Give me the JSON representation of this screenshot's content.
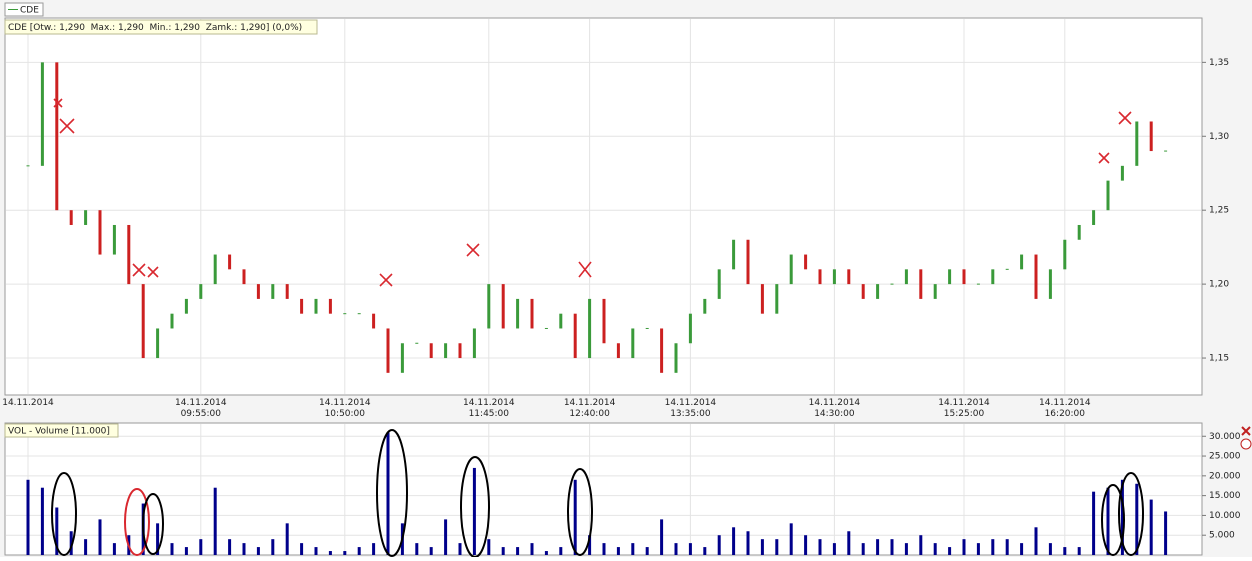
{
  "chart_data": [
    {
      "type": "candlestick",
      "legend": "CDE",
      "title": "CDE [Otw.: 1,290  Max.: 1,290  Min.: 1,290  Zamk.: 1,290] (0,0%)",
      "categories": [
        "14.11.2014",
        null,
        null,
        null,
        null,
        null,
        null,
        null,
        null,
        null,
        null,
        null,
        "14.11.2014\n09:55:00",
        null,
        null,
        null,
        null,
        null,
        null,
        null,
        null,
        null,
        "14.11.2014\n10:50:00",
        null,
        null,
        null,
        null,
        null,
        null,
        null,
        null,
        null,
        "14.11.2014\n11:45:00",
        null,
        null,
        null,
        null,
        null,
        null,
        "14.11.2014\n12:40:00",
        null,
        null,
        null,
        null,
        null,
        null,
        "14.11.2014\n13:35:00",
        null,
        null,
        null,
        null,
        null,
        null,
        null,
        null,
        null,
        "14.11.2014\n14:30:00",
        null,
        null,
        null,
        null,
        null,
        null,
        null,
        null,
        "14.11.2014\n15:25:00",
        null,
        null,
        null,
        null,
        null,
        null,
        "14.11.2014\n16:20:00",
        null,
        null,
        null,
        null,
        null,
        null,
        null
      ],
      "open": [
        1.28,
        1.28,
        1.35,
        1.25,
        1.24,
        1.25,
        1.22,
        1.24,
        1.2,
        1.15,
        1.17,
        1.18,
        1.19,
        1.2,
        1.22,
        1.21,
        1.2,
        1.19,
        1.2,
        1.19,
        1.18,
        1.19,
        1.18,
        1.18,
        1.18,
        1.17,
        1.14,
        1.16,
        1.16,
        1.15,
        1.16,
        1.15,
        1.17,
        1.2,
        1.17,
        1.19,
        1.17,
        1.17,
        1.18,
        1.15,
        1.19,
        1.16,
        1.15,
        1.17,
        1.17,
        1.14,
        1.16,
        1.18,
        1.19,
        1.21,
        1.23,
        1.2,
        1.18,
        1.2,
        1.22,
        1.21,
        1.2,
        1.21,
        1.2,
        1.19,
        1.2,
        1.2,
        1.21,
        1.19,
        1.2,
        1.21,
        1.2,
        1.2,
        1.21,
        1.21,
        1.22,
        1.19,
        1.21,
        1.23,
        1.24,
        1.25,
        1.27,
        1.28,
        1.31,
        1.29
      ],
      "close": [
        1.28,
        1.35,
        1.25,
        1.24,
        1.25,
        1.22,
        1.24,
        1.2,
        1.15,
        1.17,
        1.18,
        1.19,
        1.2,
        1.22,
        1.21,
        1.2,
        1.19,
        1.2,
        1.19,
        1.18,
        1.19,
        1.18,
        1.18,
        1.18,
        1.17,
        1.14,
        1.16,
        1.16,
        1.15,
        1.16,
        1.15,
        1.17,
        1.2,
        1.17,
        1.19,
        1.17,
        1.17,
        1.18,
        1.15,
        1.19,
        1.16,
        1.15,
        1.17,
        1.17,
        1.14,
        1.16,
        1.18,
        1.19,
        1.21,
        1.23,
        1.2,
        1.18,
        1.2,
        1.22,
        1.21,
        1.2,
        1.21,
        1.2,
        1.19,
        1.2,
        1.2,
        1.21,
        1.19,
        1.2,
        1.21,
        1.2,
        1.2,
        1.21,
        1.21,
        1.22,
        1.19,
        1.21,
        1.23,
        1.24,
        1.25,
        1.27,
        1.28,
        1.31,
        1.29,
        1.29
      ],
      "up_color": "#3a9a3a",
      "down_color": "#cc2020",
      "ylim": [
        1.125,
        1.38
      ],
      "yticks": [
        {
          "value": 1.15,
          "label": "1,15"
        },
        {
          "value": 1.2,
          "label": "1,20"
        },
        {
          "value": 1.25,
          "label": "1,25"
        },
        {
          "value": 1.3,
          "label": "1,30"
        },
        {
          "value": 1.35,
          "label": "1,35"
        }
      ],
      "grid": true
    },
    {
      "type": "bar",
      "title": "VOL - Volume [11.000]",
      "values": [
        19000,
        17000,
        12000,
        6000,
        4000,
        9000,
        3000,
        5000,
        13000,
        8000,
        3000,
        2000,
        4000,
        17000,
        4000,
        3000,
        2000,
        4000,
        8000,
        3000,
        2000,
        1000,
        1000,
        2000,
        3000,
        31000,
        8000,
        3000,
        2000,
        9000,
        3000,
        22000,
        4000,
        2000,
        2000,
        3000,
        1000,
        2000,
        19000,
        5000,
        3000,
        2000,
        3000,
        2000,
        9000,
        3000,
        3000,
        2000,
        5000,
        7000,
        6000,
        4000,
        4000,
        8000,
        5000,
        4000,
        3000,
        6000,
        3000,
        4000,
        4000,
        3000,
        5000,
        3000,
        2000,
        4000,
        3000,
        4000,
        4000,
        3000,
        7000,
        3000,
        2000,
        2000,
        16000,
        17000,
        19000,
        18000,
        14000,
        11000
      ],
      "color": "#00008b",
      "ylim": [
        0,
        33350
      ],
      "yticks": [
        {
          "value": 5000,
          "label": "5.000"
        },
        {
          "value": 10000,
          "label": "10.000"
        },
        {
          "value": 15000,
          "label": "15.000"
        },
        {
          "value": 20000,
          "label": "20.000"
        },
        {
          "value": 25000,
          "label": "25.000"
        },
        {
          "value": 30000,
          "label": "30.000"
        }
      ],
      "grid": true
    }
  ]
}
